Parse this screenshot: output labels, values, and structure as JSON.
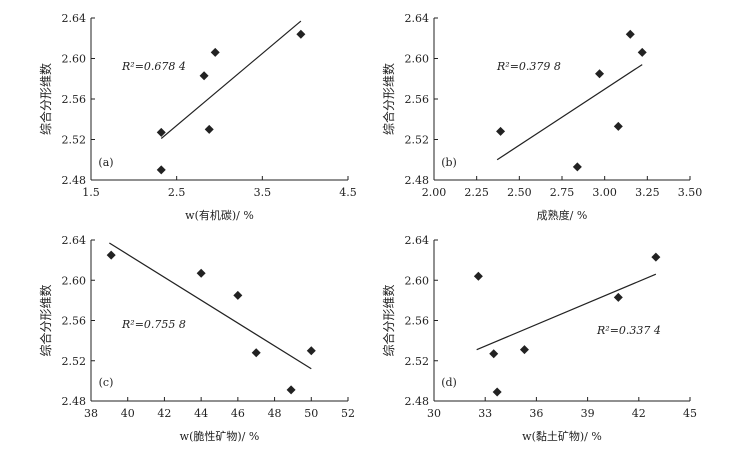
{
  "chart_data": [
    {
      "type": "scatter",
      "panel_label": "(a)",
      "ylabel": "综合分形维数",
      "xlabel": "w(有机碳)/ %",
      "xlim": [
        1.5,
        4.5
      ],
      "ylim": [
        2.48,
        2.64
      ],
      "x_ticks": [
        "1.5",
        "2.5",
        "3.5",
        "4.5"
      ],
      "y_ticks": [
        "2.48",
        "2.52",
        "2.56",
        "2.60",
        "2.64"
      ],
      "points": [
        {
          "x": 2.32,
          "y": 2.527
        },
        {
          "x": 2.32,
          "y": 2.49
        },
        {
          "x": 2.82,
          "y": 2.583
        },
        {
          "x": 2.88,
          "y": 2.53
        },
        {
          "x": 2.95,
          "y": 2.606
        },
        {
          "x": 3.95,
          "y": 2.624
        }
      ],
      "trendline": {
        "x": [
          2.32,
          3.95
        ],
        "y": [
          2.521,
          2.637
        ]
      },
      "r2_label": "R²=0.678 4"
    },
    {
      "type": "scatter",
      "panel_label": "(b)",
      "ylabel": "综合分形维数",
      "xlabel": "成熟度/ %",
      "xlim": [
        2.0,
        3.5
      ],
      "ylim": [
        2.48,
        2.64
      ],
      "x_ticks": [
        "2.00",
        "2.25",
        "2.50",
        "2.75",
        "3.00",
        "3.25",
        "3.50"
      ],
      "y_ticks": [
        "2.48",
        "2.52",
        "2.56",
        "2.60",
        "2.64"
      ],
      "points": [
        {
          "x": 2.39,
          "y": 2.528
        },
        {
          "x": 2.84,
          "y": 2.493
        },
        {
          "x": 2.97,
          "y": 2.585
        },
        {
          "x": 3.08,
          "y": 2.533
        },
        {
          "x": 3.15,
          "y": 2.624
        },
        {
          "x": 3.22,
          "y": 2.606
        }
      ],
      "trendline": {
        "x": [
          2.37,
          3.22
        ],
        "y": [
          2.5,
          2.594
        ]
      },
      "r2_label": "R²=0.379 8"
    },
    {
      "type": "scatter",
      "panel_label": "(c)",
      "ylabel": "综合分形维数",
      "xlabel": "w(脆性矿物)/ %",
      "xlim": [
        38,
        52
      ],
      "ylim": [
        2.48,
        2.64
      ],
      "x_ticks": [
        "38",
        "40",
        "42",
        "44",
        "46",
        "48",
        "50",
        "52"
      ],
      "y_ticks": [
        "2.48",
        "2.52",
        "2.56",
        "2.60",
        "2.64"
      ],
      "points": [
        {
          "x": 39.1,
          "y": 2.625
        },
        {
          "x": 44.0,
          "y": 2.607
        },
        {
          "x": 46.0,
          "y": 2.585
        },
        {
          "x": 47.0,
          "y": 2.528
        },
        {
          "x": 48.9,
          "y": 2.491
        },
        {
          "x": 50.0,
          "y": 2.53
        }
      ],
      "trendline": {
        "x": [
          39.0,
          50.0
        ],
        "y": [
          2.637,
          2.512
        ]
      },
      "r2_label": "R²=0.755 8"
    },
    {
      "type": "scatter",
      "panel_label": "(d)",
      "ylabel": "综合分形维数",
      "xlabel": "w(黏土矿物)/ %",
      "xlim": [
        30,
        45
      ],
      "ylim": [
        2.48,
        2.64
      ],
      "x_ticks": [
        "30",
        "33",
        "36",
        "39",
        "42",
        "45"
      ],
      "y_ticks": [
        "2.48",
        "2.52",
        "2.56",
        "2.60",
        "2.64"
      ],
      "points": [
        {
          "x": 32.6,
          "y": 2.604
        },
        {
          "x": 33.5,
          "y": 2.527
        },
        {
          "x": 33.7,
          "y": 2.489
        },
        {
          "x": 35.3,
          "y": 2.531
        },
        {
          "x": 40.8,
          "y": 2.583
        },
        {
          "x": 43.0,
          "y": 2.623
        }
      ],
      "trendline": {
        "x": [
          32.5,
          43.0
        ],
        "y": [
          2.531,
          2.606
        ]
      },
      "r2_label": "R²=0.337 4"
    }
  ],
  "colors": {
    "ink": "#222222",
    "background": "#ffffff"
  }
}
